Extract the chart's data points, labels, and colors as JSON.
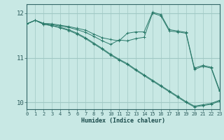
{
  "xlabel": "Humidex (Indice chaleur)",
  "bg_color": "#c8e8e4",
  "grid_color": "#a0c8c4",
  "line_color": "#2a7a6a",
  "xlim": [
    0,
    23
  ],
  "ylim": [
    9.85,
    12.2
  ],
  "yticks": [
    10,
    11,
    12
  ],
  "xticks": [
    0,
    1,
    2,
    3,
    4,
    5,
    6,
    7,
    8,
    9,
    10,
    11,
    12,
    13,
    14,
    15,
    16,
    17,
    18,
    19,
    20,
    21,
    22,
    23
  ],
  "series": [
    [
      11.76,
      11.84,
      11.77,
      11.76,
      11.73,
      11.7,
      11.66,
      11.62,
      11.53,
      11.45,
      11.41,
      11.38,
      11.55,
      11.58,
      11.58,
      12.02,
      11.97,
      11.63,
      11.6,
      11.57,
      10.77,
      10.83,
      10.79,
      10.28
    ],
    [
      11.76,
      11.84,
      11.77,
      11.74,
      11.71,
      11.68,
      11.63,
      11.57,
      11.48,
      11.38,
      11.3,
      11.4,
      11.38,
      11.43,
      11.46,
      12.0,
      11.94,
      11.6,
      11.58,
      11.55,
      10.74,
      10.81,
      10.77,
      10.25
    ],
    [
      11.76,
      11.84,
      11.75,
      11.72,
      11.68,
      11.63,
      11.55,
      11.45,
      11.33,
      11.21,
      11.08,
      10.97,
      10.87,
      10.74,
      10.62,
      10.5,
      10.38,
      10.26,
      10.14,
      10.02,
      9.92,
      9.95,
      9.98,
      10.05
    ],
    [
      11.76,
      11.84,
      11.75,
      11.72,
      11.67,
      11.61,
      11.53,
      11.43,
      11.31,
      11.19,
      11.06,
      10.95,
      10.85,
      10.72,
      10.6,
      10.48,
      10.36,
      10.24,
      10.12,
      10.0,
      9.9,
      9.93,
      9.96,
      10.03
    ]
  ]
}
